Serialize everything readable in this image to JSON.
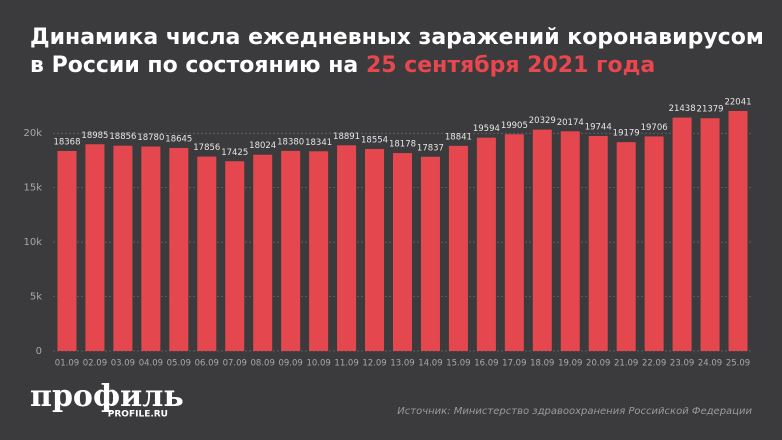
{
  "chart_data": {
    "type": "bar",
    "title_lines": [
      "Динамика числа ежедневных заражений коронавирусом",
      "в России по состоянию на"
    ],
    "title_highlight": "25 сентября 2021 года",
    "categories": [
      "01.09",
      "02.09",
      "03.09",
      "04.09",
      "05.09",
      "06.09",
      "07.09",
      "08.09",
      "09.09",
      "10.09",
      "11.09",
      "12.09",
      "13.09",
      "14.09",
      "15.09",
      "16.09",
      "17.09",
      "18.09",
      "19.09",
      "20.09",
      "21.09",
      "22.09",
      "23.09",
      "24.09",
      "25.09"
    ],
    "values": [
      18368,
      18985,
      18856,
      18780,
      18645,
      17856,
      17425,
      18024,
      18380,
      18341,
      18891,
      18554,
      18178,
      17837,
      18841,
      19594,
      19905,
      20329,
      20174,
      19744,
      19179,
      19706,
      21438,
      21379,
      22041
    ],
    "color": "#e5474f",
    "ylim": [
      0,
      22500
    ],
    "yticks": [
      0,
      {
        "value": 5000,
        "label": "5k"
      },
      {
        "value": 10000,
        "label": "10k"
      },
      {
        "value": 15000,
        "label": "15k"
      },
      {
        "value": 20000,
        "label": "20k"
      }
    ],
    "grid": true,
    "logo": "профиль",
    "logo_sub": "PROFILE.RU",
    "source": "Источник: Министерство здравоохранения Российской Федерации"
  }
}
